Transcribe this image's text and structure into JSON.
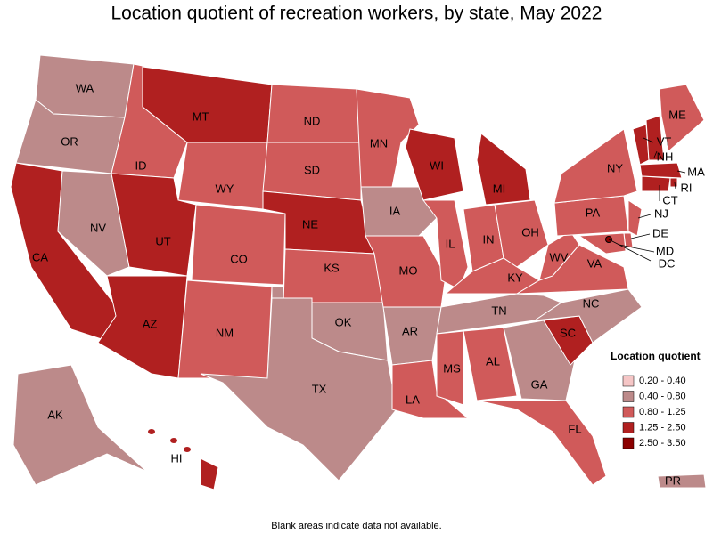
{
  "title": "Location quotient of recreation workers, by state, May 2022",
  "states": [
    {
      "label": "WA",
      "color": "#bc8a8a"
    },
    {
      "label": "OR",
      "color": "#bc8a8a"
    },
    {
      "label": "CA",
      "color": "#b02020"
    },
    {
      "label": "NV",
      "color": "#bc8a8a"
    },
    {
      "label": "ID",
      "color": "#d05a5a"
    },
    {
      "label": "MT",
      "color": "#b02020"
    },
    {
      "label": "WY",
      "color": "#d05a5a"
    },
    {
      "label": "UT",
      "color": "#b02020"
    },
    {
      "label": "AZ",
      "color": "#b02020"
    },
    {
      "label": "CO",
      "color": "#d05a5a"
    },
    {
      "label": "NM",
      "color": "#d05a5a"
    },
    {
      "label": "ND",
      "color": "#d05a5a"
    },
    {
      "label": "SD",
      "color": "#d05a5a"
    },
    {
      "label": "NE",
      "color": "#b02020"
    },
    {
      "label": "KS",
      "color": "#d05a5a"
    },
    {
      "label": "OK",
      "color": "#bc8a8a"
    },
    {
      "label": "TX",
      "color": "#bc8a8a"
    },
    {
      "label": "MN",
      "color": "#d05a5a"
    },
    {
      "label": "IA",
      "color": "#bc8a8a"
    },
    {
      "label": "MO",
      "color": "#d05a5a"
    },
    {
      "label": "AR",
      "color": "#bc8a8a"
    },
    {
      "label": "LA",
      "color": "#d05a5a"
    },
    {
      "label": "WI",
      "color": "#b02020"
    },
    {
      "label": "IL",
      "color": "#d05a5a"
    },
    {
      "label": "MI",
      "color": "#b02020"
    },
    {
      "label": "IN",
      "color": "#d05a5a"
    },
    {
      "label": "OH",
      "color": "#d05a5a"
    },
    {
      "label": "KY",
      "color": "#d05a5a"
    },
    {
      "label": "TN",
      "color": "#bc8a8a"
    },
    {
      "label": "MS",
      "color": "#d05a5a"
    },
    {
      "label": "AL",
      "color": "#d05a5a"
    },
    {
      "label": "GA",
      "color": "#bc8a8a"
    },
    {
      "label": "FL",
      "color": "#d05a5a"
    },
    {
      "label": "SC",
      "color": "#b02020"
    },
    {
      "label": "NC",
      "color": "#bc8a8a"
    },
    {
      "label": "VA",
      "color": "#d05a5a"
    },
    {
      "label": "WV",
      "color": "#d05a5a"
    },
    {
      "label": "PA",
      "color": "#d05a5a"
    },
    {
      "label": "NY",
      "color": "#d05a5a"
    },
    {
      "label": "NJ",
      "color": "#d05a5a"
    },
    {
      "label": "DE",
      "color": "#d05a5a"
    },
    {
      "label": "MD",
      "color": "#d05a5a"
    },
    {
      "label": "DC",
      "color": "#8b0000"
    },
    {
      "label": "VT",
      "color": "#b02020"
    },
    {
      "label": "NH",
      "color": "#b02020"
    },
    {
      "label": "ME",
      "color": "#d05a5a"
    },
    {
      "label": "MA",
      "color": "#b02020"
    },
    {
      "label": "RI",
      "color": "#b02020"
    },
    {
      "label": "CT",
      "color": "#b02020"
    },
    {
      "label": "AK",
      "color": "#bc8a8a"
    },
    {
      "label": "HI",
      "color": "#b02020"
    },
    {
      "label": "PR",
      "color": "#bc8a8a"
    }
  ],
  "legend": {
    "title": "Location quotient",
    "items": [
      {
        "label": "0.20 - 0.40",
        "color": "#f5c6c6"
      },
      {
        "label": "0.40 - 0.80",
        "color": "#bc8a8a"
      },
      {
        "label": "0.80 - 1.25",
        "color": "#d05a5a"
      },
      {
        "label": "1.25 - 2.50",
        "color": "#b02020"
      },
      {
        "label": "2.50 - 3.50",
        "color": "#8b0000"
      }
    ]
  },
  "footnote": "Blank areas indicate data not available."
}
